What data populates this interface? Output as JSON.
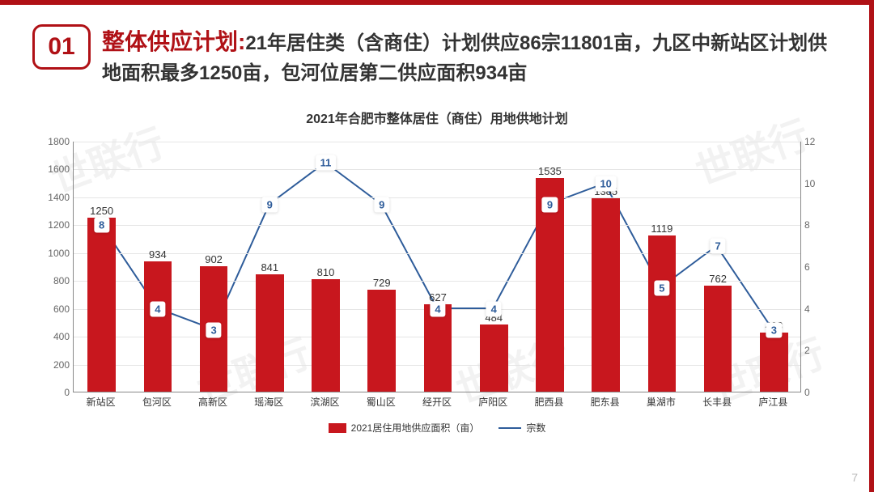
{
  "header": {
    "badge": "01",
    "title_emphasis": "整体供应计划:",
    "title_rest": "21年居住类（含商住）计划供应86宗11801亩，九区中新站区计划供地面积最多1250亩，包河位居第二供应面积934亩"
  },
  "chart": {
    "type": "bar+line",
    "title": "2021年合肥市整体居住（商住）用地供地计划",
    "categories": [
      "新站区",
      "包河区",
      "高新区",
      "瑶海区",
      "滨湖区",
      "蜀山区",
      "经开区",
      "庐阳区",
      "肥西县",
      "肥东县",
      "巢湖市",
      "长丰县",
      "庐江县"
    ],
    "bar_values": [
      1250,
      934,
      902,
      841,
      810,
      729,
      627,
      484,
      1535,
      1385,
      1119,
      762,
      423
    ],
    "line_values": [
      8,
      4,
      3,
      9,
      11,
      9,
      4,
      4,
      9,
      10,
      5,
      7,
      3
    ],
    "bar_color": "#c8171e",
    "line_color": "#2e5c9a",
    "point_label_bg": "#ffffff",
    "point_label_color": "#2e5c9a",
    "background_color": "#ffffff",
    "grid_color": "#e5e5e5",
    "axis_color": "#888888",
    "y_left": {
      "min": 0,
      "max": 1800,
      "step": 200
    },
    "y_right": {
      "min": 0,
      "max": 12,
      "step": 2
    },
    "bar_width_ratio": 0.5,
    "legend": {
      "bar": "2021居住用地供应面积（亩）",
      "line": "宗数"
    },
    "title_fontsize": 16,
    "tick_fontsize": 12,
    "label_fontsize": 13
  },
  "page_number": "7",
  "watermark_text": "世联行"
}
